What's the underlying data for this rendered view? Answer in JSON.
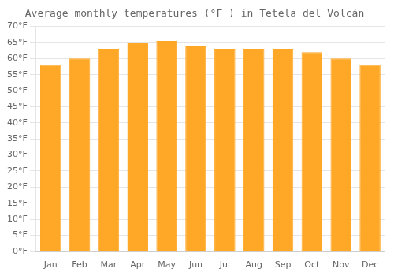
{
  "chart_data": {
    "type": "bar",
    "title": "Average monthly temperatures (°F ) in Tetela del Volcán",
    "categories": [
      "Jan",
      "Feb",
      "Mar",
      "Apr",
      "May",
      "Jun",
      "Jul",
      "Aug",
      "Sep",
      "Oct",
      "Nov",
      "Dec"
    ],
    "values": [
      58,
      60,
      63,
      65,
      65.5,
      64,
      63,
      63,
      63,
      62,
      60,
      58
    ],
    "color": "#FFA726",
    "ylim": [
      0,
      70
    ],
    "yticks": [
      {
        "value": 0,
        "label": "0°F"
      },
      {
        "value": 5,
        "label": "5°F"
      },
      {
        "value": 10,
        "label": "10°F"
      },
      {
        "value": 15,
        "label": "15°F"
      },
      {
        "value": 20,
        "label": "20°F"
      },
      {
        "value": 25,
        "label": "25°F"
      },
      {
        "value": 30,
        "label": "30°F"
      },
      {
        "value": 35,
        "label": "35°F"
      },
      {
        "value": 40,
        "label": "40°F"
      },
      {
        "value": 45,
        "label": "45°F"
      },
      {
        "value": 50,
        "label": "50°F"
      },
      {
        "value": 55,
        "label": "55°F"
      },
      {
        "value": 60,
        "label": "60°F"
      },
      {
        "value": 65,
        "label": "65°F"
      },
      {
        "value": 70,
        "label": "70°F"
      }
    ],
    "grid": true
  }
}
